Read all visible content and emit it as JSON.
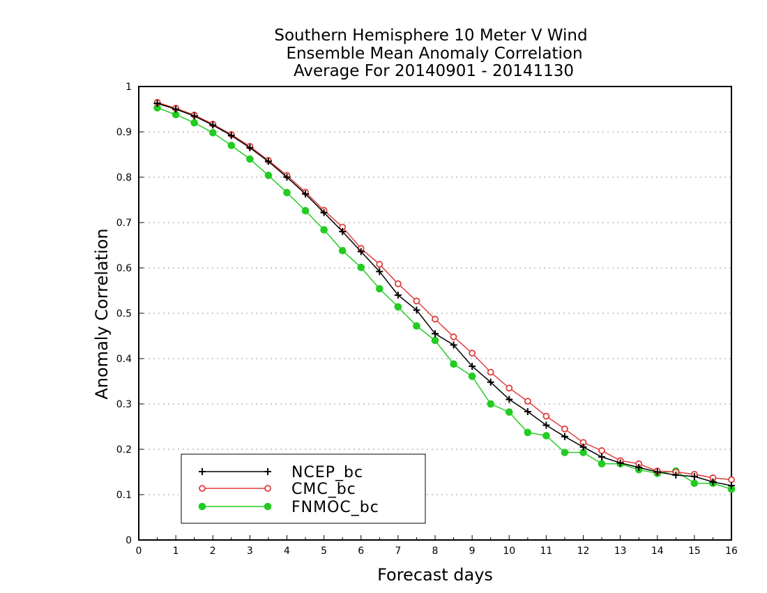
{
  "chart_data": {
    "type": "line",
    "title_lines": [
      "Southern Hemisphere 10 Meter V Wind",
      "Ensemble Mean Anomaly Correlation",
      "Average For 20140901 - 20141130"
    ],
    "xlabel": "Forecast days",
    "ylabel": "Anomaly Correlation",
    "xlim": [
      0,
      16
    ],
    "ylim": [
      0,
      1
    ],
    "x_ticks": [
      "0",
      "1",
      "2",
      "3",
      "4",
      "5",
      "6",
      "7",
      "8",
      "9",
      "10",
      "11",
      "12",
      "13",
      "14",
      "15",
      "16"
    ],
    "y_ticks": [
      "0",
      "0.1",
      "0.2",
      "0.3",
      "0.4",
      "0.5",
      "0.6",
      "0.7",
      "0.8",
      "0.9",
      "1"
    ],
    "grid": "dotted horizontal",
    "legend_position": "bottom-left",
    "x": [
      0.5,
      1,
      1.5,
      2,
      2.5,
      3,
      3.5,
      4,
      4.5,
      5,
      5.5,
      6,
      6.5,
      7,
      7.5,
      8,
      8.5,
      9,
      9.5,
      10,
      10.5,
      11,
      11.5,
      12,
      12.5,
      13,
      13.5,
      14,
      14.5,
      15,
      15.5,
      16
    ],
    "series": [
      {
        "name": "NCEP_bc",
        "color": "#000000",
        "marker": "plus",
        "values": [
          0.963,
          0.95,
          0.935,
          0.915,
          0.892,
          0.865,
          0.835,
          0.8,
          0.763,
          0.722,
          0.68,
          0.636,
          0.592,
          0.54,
          0.507,
          0.455,
          0.43,
          0.383,
          0.348,
          0.31,
          0.283,
          0.253,
          0.228,
          0.205,
          0.183,
          0.17,
          0.16,
          0.15,
          0.143,
          0.14,
          0.128,
          0.12
        ]
      },
      {
        "name": "CMC_bc",
        "color": "#e03c3c",
        "marker": "open-circle",
        "values": [
          0.965,
          0.952,
          0.937,
          0.917,
          0.894,
          0.868,
          0.837,
          0.804,
          0.767,
          0.727,
          0.69,
          0.643,
          0.608,
          0.565,
          0.527,
          0.487,
          0.448,
          0.412,
          0.37,
          0.335,
          0.306,
          0.273,
          0.245,
          0.215,
          0.197,
          0.175,
          0.168,
          0.152,
          0.15,
          0.145,
          0.137,
          0.133
        ]
      },
      {
        "name": "FNMOC_bc",
        "color": "#22cc22",
        "marker": "filled-circle",
        "values": [
          0.953,
          0.938,
          0.92,
          0.898,
          0.87,
          0.84,
          0.804,
          0.766,
          0.726,
          0.684,
          0.638,
          0.601,
          0.554,
          0.514,
          0.472,
          0.44,
          0.388,
          0.361,
          0.3,
          0.282,
          0.237,
          0.23,
          0.193,
          0.193,
          0.168,
          0.168,
          0.155,
          0.147,
          0.152,
          0.125,
          0.125,
          0.112
        ]
      }
    ]
  }
}
